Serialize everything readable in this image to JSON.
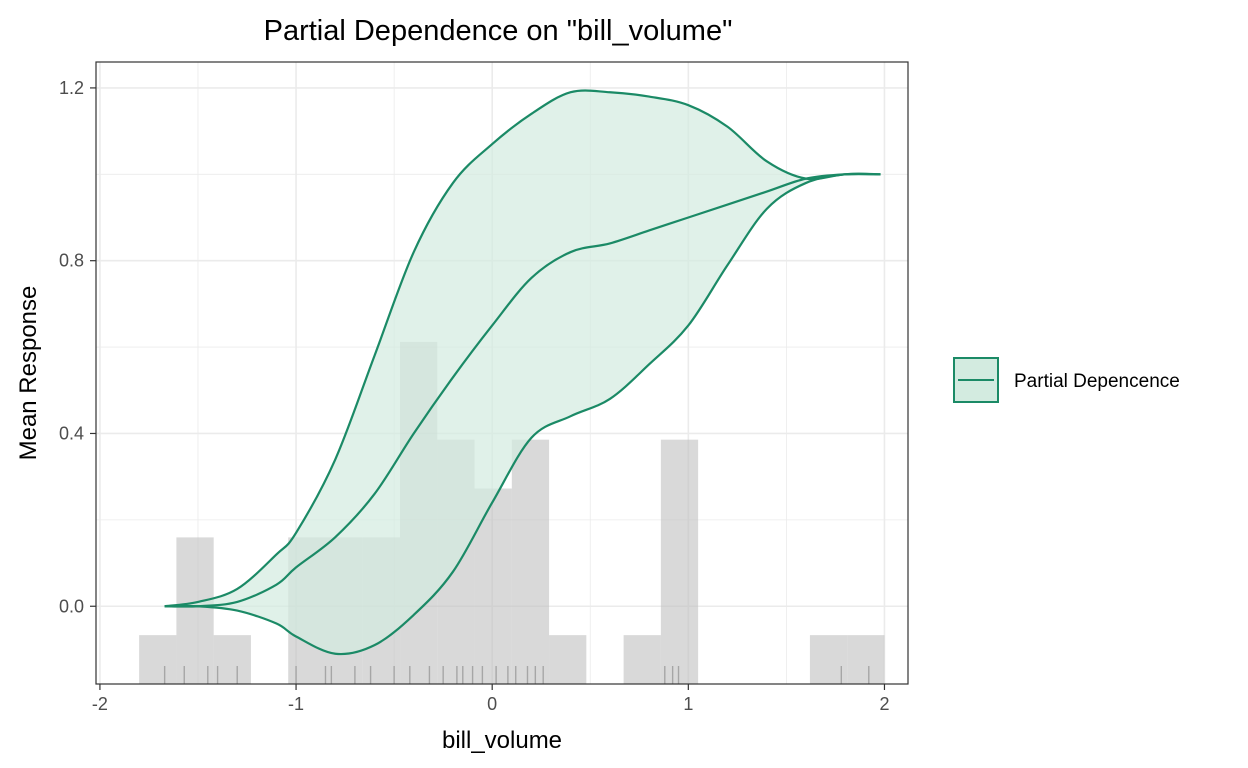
{
  "chart_data": {
    "type": "area",
    "title": "Partial Dependence on \"bill_volume\"",
    "xlabel": "bill_volume",
    "ylabel": "Mean Response",
    "xlim": [
      -2.02,
      2.12
    ],
    "ylim": [
      -0.18,
      1.26
    ],
    "x_ticks": [
      -2,
      -1,
      0,
      1,
      2
    ],
    "x_tick_labels": [
      "-2",
      "-1",
      "0",
      "1",
      "2"
    ],
    "y_ticks": [
      0.0,
      0.4,
      0.8,
      1.2
    ],
    "y_tick_labels": [
      "0.0",
      "0.4",
      "0.8",
      "1.2"
    ],
    "grid": true,
    "legend_position": "right",
    "colors": {
      "line": "#1b8a66",
      "band_fill": "#d3ebe0",
      "histogram": "#bfbfbf",
      "grid": "#ebebeb",
      "rug": "#a6a6a6"
    },
    "series": [
      {
        "name": "Partial Depencence",
        "x": [
          -1.67,
          -1.5,
          -1.3,
          -1.1,
          -1.0,
          -0.8,
          -0.6,
          -0.4,
          -0.2,
          0.0,
          0.2,
          0.4,
          0.6,
          0.8,
          1.0,
          1.2,
          1.4,
          1.6,
          1.8,
          1.98
        ],
        "mean": [
          0.0,
          0.0,
          0.01,
          0.05,
          0.09,
          0.16,
          0.26,
          0.4,
          0.53,
          0.65,
          0.76,
          0.82,
          0.84,
          0.87,
          0.9,
          0.93,
          0.96,
          0.99,
          1.0,
          1.0
        ],
        "upper": [
          0.0,
          0.01,
          0.04,
          0.12,
          0.17,
          0.34,
          0.58,
          0.82,
          0.98,
          1.07,
          1.14,
          1.19,
          1.19,
          1.18,
          1.16,
          1.11,
          1.03,
          0.99,
          1.0,
          1.0
        ],
        "lower": [
          0.0,
          0.0,
          -0.01,
          -0.04,
          -0.07,
          -0.11,
          -0.09,
          -0.02,
          0.08,
          0.24,
          0.39,
          0.44,
          0.48,
          0.56,
          0.65,
          0.79,
          0.92,
          0.98,
          1.0,
          1.0
        ]
      }
    ],
    "histogram": {
      "bins": [
        {
          "x0": -1.8,
          "x1": -1.61,
          "count": 1
        },
        {
          "x0": -1.61,
          "x1": -1.42,
          "count": 3
        },
        {
          "x0": -1.42,
          "x1": -1.23,
          "count": 1
        },
        {
          "x0": -1.04,
          "x1": -0.85,
          "count": 3
        },
        {
          "x0": -0.85,
          "x1": -0.66,
          "count": 3
        },
        {
          "x0": -0.66,
          "x1": -0.47,
          "count": 3
        },
        {
          "x0": -0.47,
          "x1": -0.28,
          "count": 7
        },
        {
          "x0": -0.28,
          "x1": -0.09,
          "count": 5
        },
        {
          "x0": -0.09,
          "x1": 0.1,
          "count": 4
        },
        {
          "x0": 0.1,
          "x1": 0.29,
          "count": 5
        },
        {
          "x0": 0.29,
          "x1": 0.48,
          "count": 1
        },
        {
          "x0": 0.67,
          "x1": 0.86,
          "count": 1
        },
        {
          "x0": 0.86,
          "x1": 1.05,
          "count": 5
        },
        {
          "x0": 1.62,
          "x1": 1.81,
          "count": 1
        },
        {
          "x0": 1.81,
          "x1": 2.0,
          "count": 1
        }
      ],
      "count_range": [
        0,
        7
      ]
    },
    "rug": [
      -1.67,
      -1.57,
      -1.45,
      -1.4,
      -1.3,
      -1.0,
      -0.85,
      -0.82,
      -0.7,
      -0.62,
      -0.5,
      -0.42,
      -0.32,
      -0.25,
      -0.18,
      -0.15,
      -0.1,
      -0.05,
      0.02,
      0.08,
      0.12,
      0.18,
      0.22,
      0.26,
      0.88,
      0.92,
      0.95,
      1.78,
      1.92
    ]
  }
}
